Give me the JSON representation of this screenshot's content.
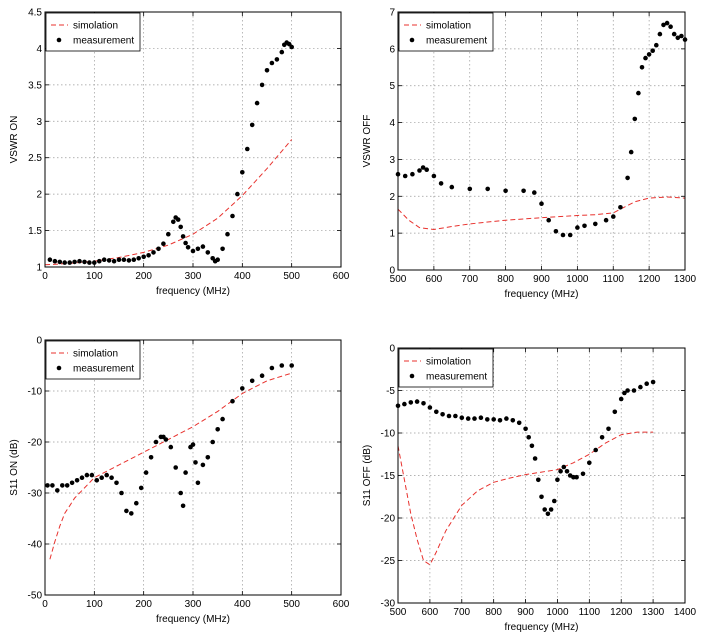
{
  "chart_data": [
    {
      "type": "line",
      "xlabel": "frequency (MHz)",
      "ylabel": "VSWR ON",
      "xlim": [
        0,
        600
      ],
      "ylim": [
        1,
        4.5
      ],
      "xticks": [
        0,
        100,
        200,
        300,
        400,
        500,
        600
      ],
      "yticks": [
        1,
        1.5,
        2,
        2.5,
        3,
        3.5,
        4,
        4.5
      ],
      "grid": true,
      "legend": "top-left",
      "series": [
        {
          "name": "simolation",
          "style": "dashed",
          "color": "#e8322e",
          "x": [
            0,
            50,
            100,
            150,
            200,
            250,
            300,
            350,
            400,
            450,
            500
          ],
          "y": [
            1.03,
            1.05,
            1.08,
            1.13,
            1.2,
            1.3,
            1.45,
            1.67,
            1.98,
            2.35,
            2.75
          ]
        },
        {
          "name": "measurement",
          "style": "markers",
          "color": "#000000",
          "x": [
            10,
            20,
            30,
            40,
            50,
            60,
            70,
            80,
            90,
            100,
            110,
            120,
            130,
            140,
            150,
            160,
            170,
            180,
            190,
            200,
            210,
            220,
            230,
            240,
            250,
            260,
            265,
            270,
            275,
            280,
            285,
            290,
            300,
            310,
            320,
            330,
            340,
            345,
            350,
            360,
            370,
            380,
            390,
            400,
            410,
            420,
            430,
            440,
            450,
            460,
            470,
            480,
            485,
            490,
            495,
            500
          ],
          "y": [
            1.1,
            1.08,
            1.07,
            1.06,
            1.06,
            1.07,
            1.08,
            1.07,
            1.06,
            1.06,
            1.08,
            1.1,
            1.09,
            1.08,
            1.1,
            1.1,
            1.09,
            1.1,
            1.12,
            1.14,
            1.16,
            1.2,
            1.25,
            1.32,
            1.45,
            1.62,
            1.68,
            1.65,
            1.55,
            1.42,
            1.33,
            1.27,
            1.22,
            1.25,
            1.28,
            1.2,
            1.12,
            1.08,
            1.1,
            1.25,
            1.45,
            1.7,
            2.0,
            2.3,
            2.62,
            2.95,
            3.25,
            3.5,
            3.7,
            3.8,
            3.85,
            3.95,
            4.05,
            4.08,
            4.06,
            4.02
          ]
        }
      ]
    },
    {
      "type": "line",
      "xlabel": "frequency (MHz)",
      "ylabel": "VSWR OFF",
      "xlim": [
        500,
        1300
      ],
      "ylim": [
        0,
        7
      ],
      "xticks": [
        500,
        600,
        700,
        800,
        900,
        1000,
        1100,
        1200,
        1300
      ],
      "yticks": [
        0,
        1,
        2,
        3,
        4,
        5,
        6,
        7
      ],
      "grid": true,
      "legend": "top-left",
      "series": [
        {
          "name": "simolation",
          "style": "dashed",
          "color": "#e8322e",
          "x": [
            500,
            530,
            560,
            600,
            650,
            700,
            800,
            900,
            1000,
            1050,
            1100,
            1130,
            1160,
            1200,
            1250,
            1300
          ],
          "y": [
            1.65,
            1.35,
            1.15,
            1.1,
            1.18,
            1.25,
            1.35,
            1.42,
            1.48,
            1.5,
            1.55,
            1.7,
            1.85,
            1.95,
            1.98,
            1.95
          ]
        },
        {
          "name": "measurement",
          "style": "markers",
          "color": "#000000",
          "x": [
            500,
            520,
            540,
            560,
            570,
            580,
            600,
            620,
            650,
            700,
            750,
            800,
            850,
            880,
            900,
            920,
            940,
            960,
            980,
            1000,
            1020,
            1050,
            1080,
            1100,
            1120,
            1140,
            1150,
            1160,
            1170,
            1180,
            1190,
            1200,
            1210,
            1220,
            1230,
            1240,
            1250,
            1260,
            1270,
            1280,
            1290,
            1300
          ],
          "y": [
            2.6,
            2.55,
            2.6,
            2.7,
            2.78,
            2.72,
            2.55,
            2.35,
            2.25,
            2.2,
            2.2,
            2.15,
            2.15,
            2.1,
            1.8,
            1.35,
            1.05,
            0.95,
            0.95,
            1.15,
            1.2,
            1.25,
            1.35,
            1.45,
            1.7,
            2.5,
            3.2,
            4.1,
            4.8,
            5.5,
            5.75,
            5.85,
            5.95,
            6.1,
            6.4,
            6.65,
            6.7,
            6.6,
            6.4,
            6.3,
            6.35,
            6.25
          ]
        }
      ]
    },
    {
      "type": "line",
      "xlabel": "frequency (MHz)",
      "ylabel": "S11 ON (dB)",
      "xlim": [
        0,
        600
      ],
      "ylim": [
        -50,
        0
      ],
      "xticks": [
        0,
        100,
        200,
        300,
        400,
        500,
        600
      ],
      "yticks": [
        -50,
        -40,
        -30,
        -20,
        -10,
        0
      ],
      "grid": true,
      "legend": "top-left",
      "series": [
        {
          "name": "simolation",
          "style": "dashed",
          "color": "#e8322e",
          "x": [
            10,
            20,
            30,
            40,
            50,
            60,
            80,
            100,
            150,
            200,
            250,
            300,
            350,
            400,
            450,
            500
          ],
          "y": [
            -43,
            -39.5,
            -36.5,
            -34,
            -32.5,
            -31,
            -29,
            -27,
            -24.5,
            -22,
            -19.5,
            -17,
            -14,
            -10.5,
            -8,
            -6.5
          ]
        },
        {
          "name": "measurement",
          "style": "markers",
          "color": "#000000",
          "x": [
            5,
            15,
            25,
            35,
            45,
            55,
            65,
            75,
            85,
            95,
            105,
            115,
            125,
            135,
            145,
            155,
            165,
            175,
            185,
            195,
            205,
            215,
            225,
            235,
            240,
            245,
            255,
            265,
            275,
            280,
            285,
            295,
            300,
            305,
            310,
            320,
            330,
            340,
            350,
            360,
            380,
            400,
            420,
            440,
            460,
            480,
            500
          ],
          "y": [
            -28.5,
            -28.5,
            -29.5,
            -28.5,
            -28.5,
            -28,
            -27.5,
            -27,
            -26.5,
            -26.5,
            -27.5,
            -27,
            -26.5,
            -27,
            -28,
            -30,
            -33.5,
            -34,
            -32,
            -29,
            -26,
            -23,
            -20,
            -19,
            -19,
            -19.5,
            -21,
            -25,
            -30,
            -32.5,
            -26,
            -21,
            -20.5,
            -24,
            -28,
            -24.5,
            -23,
            -20,
            -17.5,
            -15.5,
            -12,
            -9.5,
            -8,
            -7,
            -5.5,
            -5,
            -5
          ]
        }
      ]
    },
    {
      "type": "line",
      "xlabel": "frequency (MHz)",
      "ylabel": "S11 OFF (dB)",
      "xlim": [
        500,
        1400
      ],
      "ylim": [
        -30,
        0
      ],
      "xticks": [
        500,
        600,
        700,
        800,
        900,
        1000,
        1100,
        1200,
        1300,
        1400
      ],
      "yticks": [
        -30,
        -25,
        -20,
        -15,
        -10,
        -5,
        0
      ],
      "grid": true,
      "legend": "top-left",
      "series": [
        {
          "name": "simolation",
          "style": "dashed",
          "color": "#e8322e",
          "x": [
            500,
            520,
            540,
            560,
            580,
            600,
            620,
            650,
            700,
            750,
            800,
            850,
            900,
            950,
            1000,
            1050,
            1100,
            1150,
            1200,
            1250,
            1300
          ],
          "y": [
            -11.5,
            -15.5,
            -19.5,
            -22.5,
            -25,
            -25.5,
            -24,
            -21.5,
            -18.5,
            -16.8,
            -15.8,
            -15.3,
            -14.9,
            -14.6,
            -14.3,
            -13.5,
            -12.5,
            -11.2,
            -10.2,
            -9.9,
            -9.9
          ]
        },
        {
          "name": "measurement",
          "style": "markers",
          "color": "#000000",
          "x": [
            500,
            520,
            540,
            560,
            580,
            600,
            620,
            640,
            660,
            680,
            700,
            720,
            740,
            760,
            780,
            800,
            820,
            840,
            860,
            880,
            900,
            910,
            920,
            930,
            940,
            950,
            960,
            970,
            980,
            990,
            1000,
            1010,
            1020,
            1030,
            1040,
            1050,
            1060,
            1080,
            1100,
            1120,
            1140,
            1160,
            1180,
            1200,
            1210,
            1220,
            1240,
            1260,
            1280,
            1300
          ],
          "y": [
            -6.8,
            -6.6,
            -6.4,
            -6.3,
            -6.5,
            -7,
            -7.5,
            -7.8,
            -8,
            -8,
            -8.2,
            -8.3,
            -8.3,
            -8.2,
            -8.4,
            -8.4,
            -8.5,
            -8.3,
            -8.5,
            -8.8,
            -9.5,
            -10.5,
            -11.5,
            -13,
            -15.5,
            -17.5,
            -19,
            -19.5,
            -19,
            -18,
            -15.5,
            -14.5,
            -14,
            -14.5,
            -15,
            -15.2,
            -15.2,
            -14.8,
            -13.5,
            -12,
            -10.5,
            -9.5,
            -7.5,
            -6,
            -5.3,
            -5,
            -5,
            -4.6,
            -4.2,
            -4
          ]
        }
      ]
    }
  ]
}
